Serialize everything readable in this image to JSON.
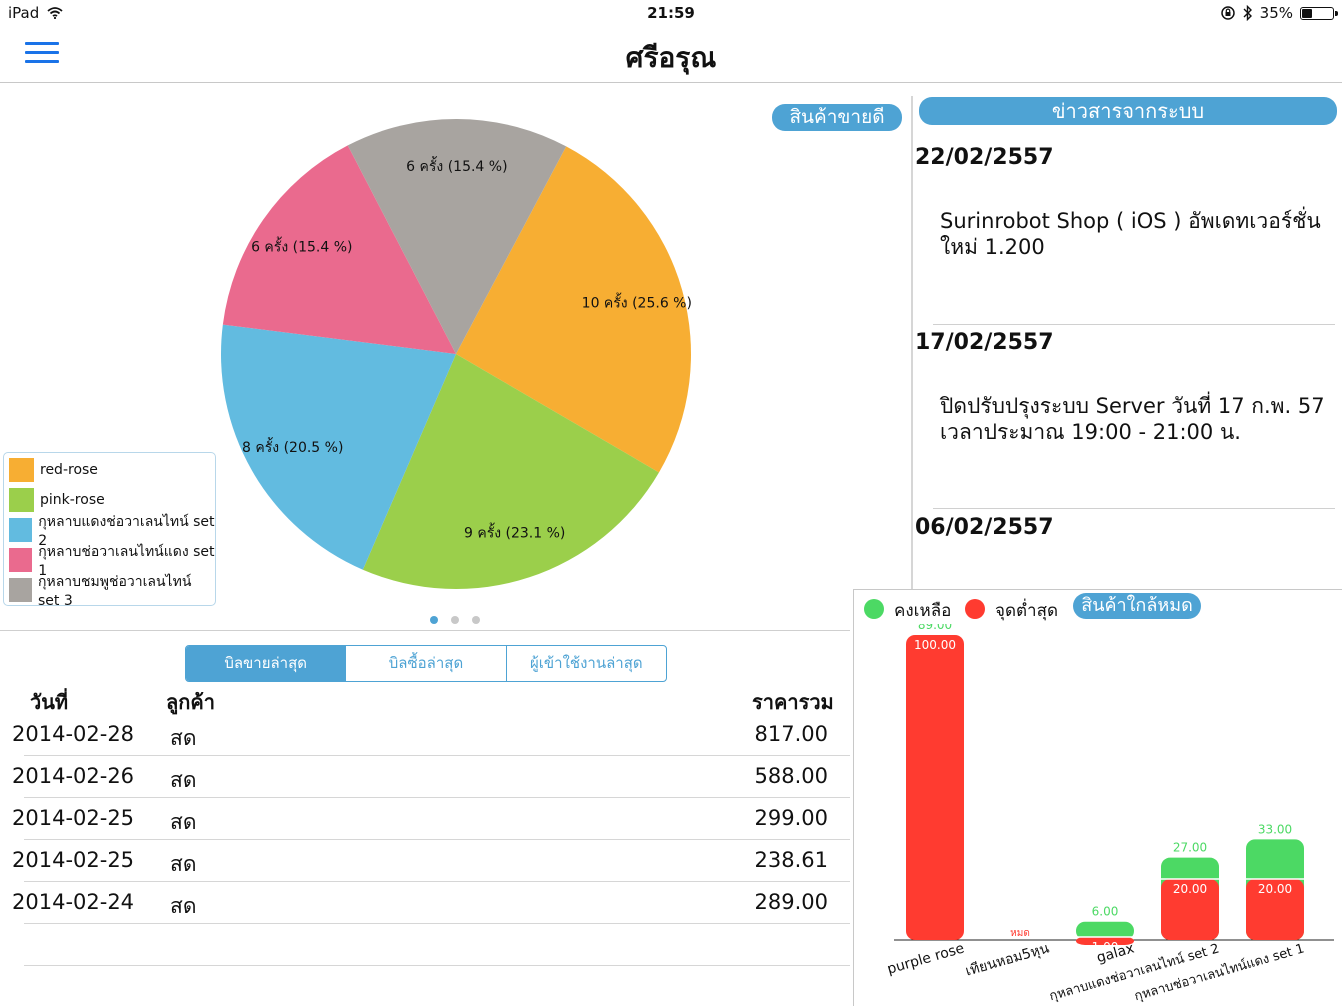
{
  "status_bar": {
    "device": "iPad",
    "time": "21:59",
    "battery_text": "35%",
    "battery_level": 0.35
  },
  "nav": {
    "title": "ศรีอรุณ"
  },
  "best_seller": {
    "badge": "สินค้าขายดี",
    "legend": [
      {
        "label": "red-rose",
        "color": "#F7AE33"
      },
      {
        "label": "pink-rose",
        "color": "#9BCF4B"
      },
      {
        "label": "กุหลาบแดงช่อวาเลนไทน์ set 2",
        "color": "#62BBE0"
      },
      {
        "label": "กุหลาบช่อวาเลนไทน์แดง set 1",
        "color": "#EA6A8E"
      },
      {
        "label": "กุหลาบชมพูช่อวาเลนไทน์ set 3",
        "color": "#A8A4A0"
      }
    ],
    "page_count": 3,
    "active_page": 0
  },
  "chart_data": [
    {
      "type": "pie",
      "title": "",
      "categories": [
        "red-rose",
        "pink-rose",
        "กุหลาบแดงช่อวาเลนไทน์ set 2",
        "กุหลาบช่อวาเลนไทน์แดง set 1",
        "กุหลาบชมพูช่อวาเลนไทน์ set 3"
      ],
      "values": [
        10,
        9,
        8,
        6,
        6
      ],
      "percents": [
        25.6,
        23.1,
        20.5,
        15.4,
        15.4
      ],
      "data_labels": [
        "10 ครั้ง (25.6 %)",
        "9 ครั้ง (23.1 %)",
        "8 ครั้ง (20.5 %)",
        "6 ครั้ง (15.4 %)",
        "6 ครั้ง (15.4 %)"
      ],
      "colors": [
        "#F7AE33",
        "#9BCF4B",
        "#62BBE0",
        "#EA6A8E",
        "#A8A4A0"
      ],
      "legend": "bottom-left"
    },
    {
      "type": "bar",
      "title": "สินค้าใกล้หมด",
      "categories": [
        "purple rose",
        "เทียนหอม5หุน",
        "galax",
        "กุหลาบแดงช่อวาเลนไทน์ set 2",
        "กุหลาบช่อวาเลนไทน์แดง set 1"
      ],
      "series": [
        {
          "name": "คงเหลือ",
          "color": "#4CD964",
          "values": [
            89,
            0,
            6,
            27,
            33
          ],
          "labels": [
            "89.00",
            "",
            "6.00",
            "27.00",
            "33.00"
          ]
        },
        {
          "name": "จุดต่ำสุด",
          "color": "#FF3B30",
          "values": [
            100,
            0,
            1,
            20,
            20
          ],
          "labels": [
            "100.00",
            "หมด",
            "1.00",
            "20.00",
            "20.00"
          ]
        }
      ],
      "ylim": [
        0,
        100
      ],
      "legend": "top-left"
    }
  ],
  "news": {
    "badge": "ข่าวสารจากระบบ",
    "items": [
      {
        "date": "22/02/2557",
        "body": "Surinrobot Shop ( iOS )  อัพเดทเวอร์ชั่นใหม่ 1.200"
      },
      {
        "date": "17/02/2557",
        "body": "ปิดปรับปรุงระบบ Server วันที่ 17 ก.พ. 57 เวลาประมาณ 19:00 - 21:00 น."
      },
      {
        "date": "06/02/2557",
        "body": ""
      }
    ]
  },
  "tabs": [
    "บิลขายล่าสุด",
    "บิลซื้อล่าสุด",
    "ผู้เข้าใช้งานล่าสุด"
  ],
  "active_tab": 0,
  "table": {
    "headers": {
      "date": "วันที่",
      "customer": "ลูกค้า",
      "total": "ราคารวม"
    },
    "rows": [
      {
        "date": "2014-02-28",
        "customer": "สด",
        "total": "817.00"
      },
      {
        "date": "2014-02-26",
        "customer": "สด",
        "total": "588.00"
      },
      {
        "date": "2014-02-25",
        "customer": "สด",
        "total": "299.00"
      },
      {
        "date": "2014-02-25",
        "customer": "สด",
        "total": "238.61"
      },
      {
        "date": "2014-02-24",
        "customer": "สด",
        "total": "289.00"
      }
    ]
  }
}
